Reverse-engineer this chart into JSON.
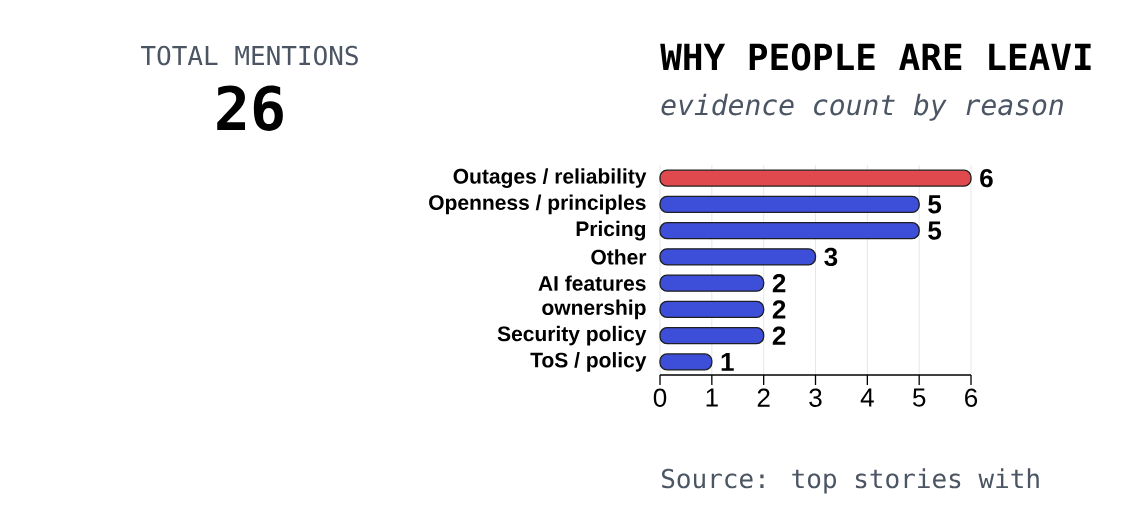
{
  "chart_data": {
    "type": "bar",
    "orientation": "horizontal",
    "title": "WHY PEOPLE ARE LEAVI",
    "subtitle": "evidence count by reason",
    "categories": [
      "Outages / reliability",
      "Openness / principles",
      "Pricing",
      "Other",
      "AI features",
      "ownership",
      "Security policy",
      "ToS / policy"
    ],
    "values": [
      6,
      5,
      5,
      3,
      2,
      2,
      2,
      1
    ],
    "colors": [
      "#e04a4f",
      "#3d4fd9",
      "#3d4fd9",
      "#3d4fd9",
      "#3d4fd9",
      "#3d4fd9",
      "#3d4fd9",
      "#3d4fd9"
    ],
    "xlim": [
      0,
      6
    ],
    "xticks": [
      0,
      1,
      2,
      3,
      4,
      5,
      6
    ],
    "grid": "x",
    "data_labels": true,
    "annotations": [
      "TOTAL MENTIONS",
      "26",
      "Source: top stories with"
    ]
  }
}
